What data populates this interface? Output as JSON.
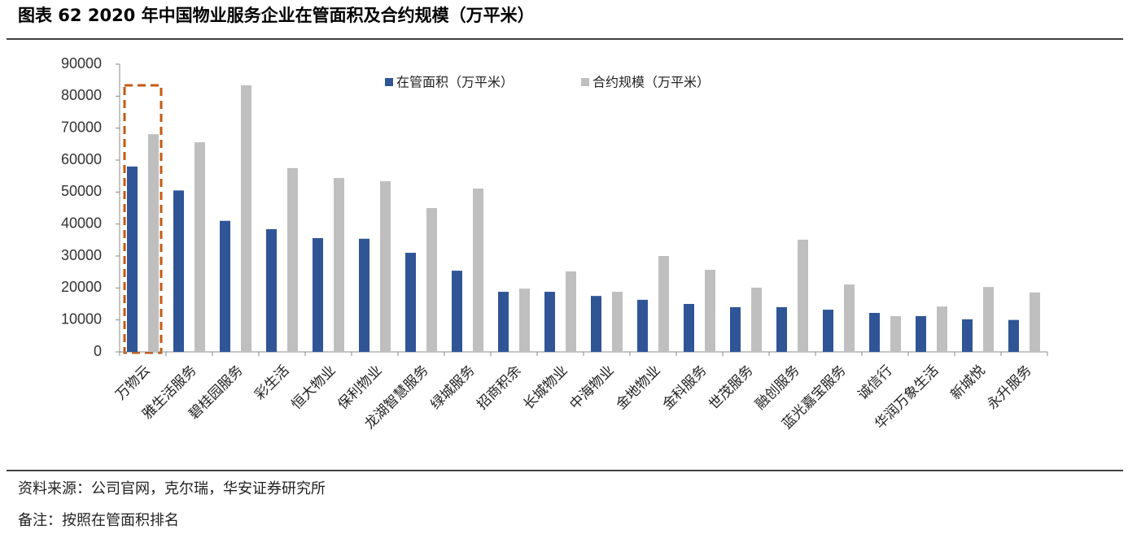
{
  "chart_data": {
    "type": "bar",
    "title": "图表 62 2020 年中国物业服务企业在管面积及合约规模（万平米）",
    "categories": [
      "万物云",
      "雅生活服务",
      "碧桂园服务",
      "彩生活",
      "恒大物业",
      "保利物业",
      "龙湖智慧服务",
      "绿城服务",
      "招商积余",
      "长城物业",
      "中海物业",
      "金地物业",
      "金科服务",
      "世茂服务",
      "融创服务",
      "蓝光嘉宝服务",
      "诚信行",
      "华润万象生活",
      "新城悦",
      "永升服务"
    ],
    "series": [
      {
        "name": "在管面积（万平米）",
        "color": "#2f5597",
        "values": [
          58000,
          50500,
          41000,
          38400,
          35600,
          35400,
          31000,
          25400,
          18800,
          18800,
          17500,
          16300,
          15000,
          14000,
          14000,
          13200,
          12200,
          11200,
          10200,
          10000
        ]
      },
      {
        "name": "合约规模（万平米）",
        "color": "#bfbfbf",
        "values": [
          68100,
          65600,
          83400,
          57500,
          54400,
          53400,
          45000,
          51100,
          19800,
          25200,
          18800,
          30000,
          25700,
          20100,
          35100,
          21100,
          11200,
          14200,
          20300,
          18600
        ]
      }
    ],
    "ylim": [
      0,
      90000
    ],
    "yticks": [
      0,
      10000,
      20000,
      30000,
      40000,
      50000,
      60000,
      70000,
      80000,
      90000
    ],
    "grid": false,
    "legend": "top",
    "source": "资料来源：公司官网，克尔瑞，华安证券研究所",
    "note": "备注：按照在管面积排名"
  }
}
